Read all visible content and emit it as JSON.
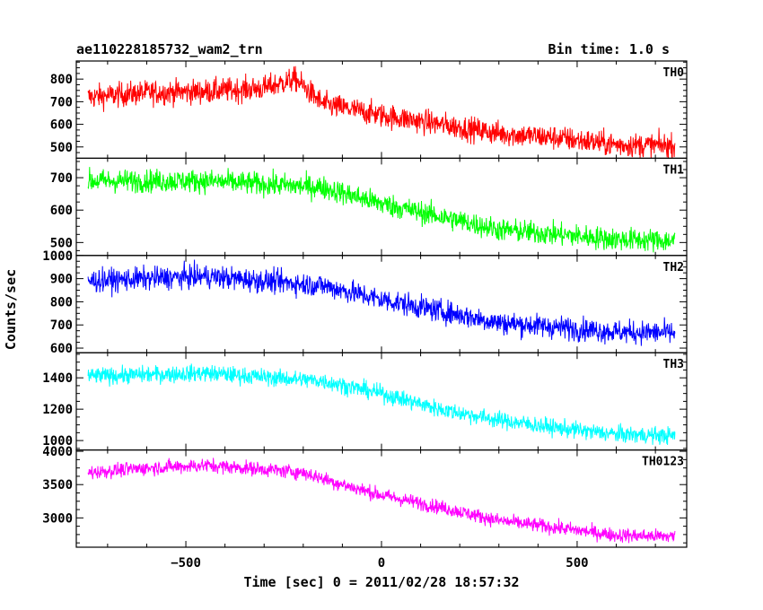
{
  "header": {
    "title": "ae110228185732_wam2_trn",
    "bin_time": "Bin time: 1.0 s"
  },
  "chart_data": {
    "type": "line",
    "xlabel": "Time [sec] 0 = 2011/02/28 18:57:32",
    "ylabel": "Counts/sec",
    "xlim": [
      -780,
      780
    ],
    "xticks": [
      -500,
      0,
      500
    ],
    "xtick_labels": [
      "−500",
      "0",
      "500"
    ],
    "x_range": [
      -750,
      750
    ],
    "series": [
      {
        "name": "TH0",
        "color": "#ff0000",
        "ylim": [
          450,
          880
        ],
        "yticks": [
          500,
          600,
          700,
          800
        ],
        "ytick_labels": [
          "500",
          "600",
          "700",
          "800"
        ],
        "trend": [
          [
            -750,
            720
          ],
          [
            -600,
            740
          ],
          [
            -450,
            745
          ],
          [
            -300,
            760
          ],
          [
            -220,
            800
          ],
          [
            -150,
            690
          ],
          [
            0,
            640
          ],
          [
            150,
            600
          ],
          [
            300,
            560
          ],
          [
            450,
            540
          ],
          [
            600,
            510
          ],
          [
            750,
            505
          ]
        ],
        "noise": 38
      },
      {
        "name": "TH1",
        "color": "#00ff00",
        "ylim": [
          460,
          760
        ],
        "yticks": [
          500,
          600,
          700
        ],
        "ytick_labels": [
          "500",
          "600",
          "700"
        ],
        "trend": [
          [
            -750,
            690
          ],
          [
            -450,
            690
          ],
          [
            -150,
            670
          ],
          [
            0,
            620
          ],
          [
            150,
            580
          ],
          [
            300,
            540
          ],
          [
            450,
            525
          ],
          [
            600,
            510
          ],
          [
            750,
            505
          ]
        ],
        "noise": 25
      },
      {
        "name": "TH2",
        "color": "#0000ff",
        "ylim": [
          580,
          1000
        ],
        "yticks": [
          600,
          700,
          800,
          900,
          1000
        ],
        "ytick_labels": [
          "600",
          "700",
          "800",
          "900",
          "1000"
        ],
        "trend": [
          [
            -750,
            890
          ],
          [
            -450,
            910
          ],
          [
            -150,
            870
          ],
          [
            0,
            810
          ],
          [
            150,
            760
          ],
          [
            300,
            710
          ],
          [
            450,
            690
          ],
          [
            600,
            670
          ],
          [
            750,
            665
          ]
        ],
        "noise": 35
      },
      {
        "name": "TH3",
        "color": "#00ffff",
        "ylim": [
          940,
          1560
        ],
        "yticks": [
          1000,
          1200,
          1400
        ],
        "ytick_labels": [
          "1000",
          "1200",
          "1400"
        ],
        "trend": [
          [
            -750,
            1410
          ],
          [
            -450,
            1430
          ],
          [
            -150,
            1380
          ],
          [
            0,
            1300
          ],
          [
            150,
            1200
          ],
          [
            300,
            1130
          ],
          [
            450,
            1080
          ],
          [
            600,
            1040
          ],
          [
            750,
            1030
          ]
        ],
        "noise": 38
      },
      {
        "name": "TH0123",
        "color": "#ff00ff",
        "ylim": [
          2560,
          4020
        ],
        "yticks": [
          3000,
          3500,
          4000
        ],
        "ytick_labels": [
          "3000",
          "3500",
          "4000"
        ],
        "trend": [
          [
            -750,
            3680
          ],
          [
            -600,
            3750
          ],
          [
            -450,
            3790
          ],
          [
            -300,
            3730
          ],
          [
            -200,
            3680
          ],
          [
            -100,
            3500
          ],
          [
            0,
            3340
          ],
          [
            150,
            3160
          ],
          [
            300,
            2960
          ],
          [
            450,
            2850
          ],
          [
            600,
            2740
          ],
          [
            750,
            2720
          ]
        ],
        "noise": 75
      }
    ]
  }
}
